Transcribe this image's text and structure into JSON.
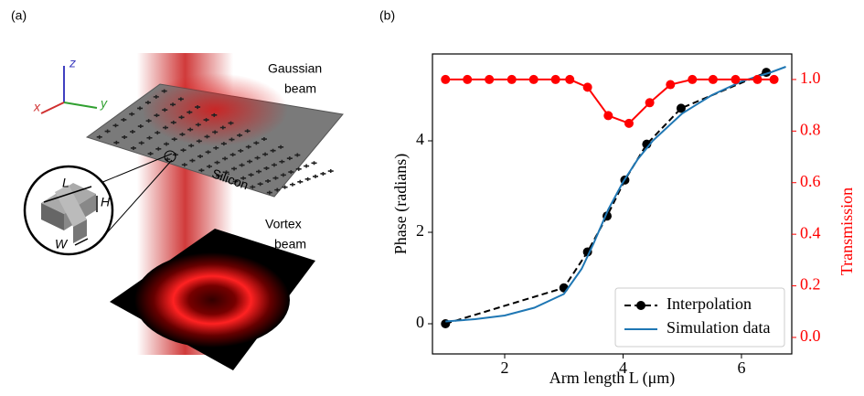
{
  "panel_a": {
    "label": "(a)",
    "axes": {
      "x": "x",
      "y": "y",
      "z": "z"
    },
    "gaussian": [
      "Gaussian",
      "beam"
    ],
    "silicon": "Silicon",
    "vortex": [
      "Vortex",
      "beam"
    ],
    "dims": {
      "L": "L",
      "H": "H",
      "W": "W"
    }
  },
  "chart_data": {
    "type": "line",
    "panel_label": "(b)",
    "xlabel": "Arm length L (μm)",
    "ylabel": "Phase (radians)",
    "y2label": "Transmission",
    "xlim": [
      0.78,
      6.85
    ],
    "xticks": [
      2,
      4,
      6
    ],
    "ylim": [
      -0.66,
      5.9
    ],
    "yticks": [
      0,
      2,
      4
    ],
    "y2lim": [
      -0.064,
      1.099
    ],
    "y2ticks": [
      {
        "value": 0,
        "label": "0.0"
      },
      0.2,
      0.4,
      0.6,
      0.8,
      {
        "value": 1,
        "label": "1.0"
      }
    ],
    "legend": "lower right",
    "series": [
      {
        "name": "Interpolation",
        "color": "#000000",
        "style": "dashed-markers",
        "x": [
          1.0,
          3.0,
          3.4,
          3.73,
          4.03,
          4.4,
          4.98,
          6.42
        ],
        "values": [
          0,
          0.785,
          1.571,
          2.356,
          3.142,
          3.927,
          4.712,
          5.498
        ]
      },
      {
        "name": "Simulation data",
        "color": "#1f77b4",
        "style": "line",
        "x": [
          1.0,
          1.5,
          2.0,
          2.5,
          3.0,
          3.3,
          3.5,
          3.75,
          4.0,
          4.25,
          4.5,
          5.0,
          5.5,
          6.0,
          6.5,
          6.75
        ],
        "values": [
          0.05,
          0.1,
          0.18,
          0.35,
          0.65,
          1.2,
          1.75,
          2.5,
          3.1,
          3.6,
          4.0,
          4.6,
          5.0,
          5.3,
          5.5,
          5.62
        ]
      },
      {
        "color": "#ff0000",
        "style": "markers-line",
        "axis": "y2",
        "x": [
          1.0,
          1.37,
          1.74,
          2.12,
          2.49,
          2.86,
          3.1,
          3.4,
          3.75,
          4.1,
          4.45,
          4.8,
          5.17,
          5.52,
          5.9,
          6.27,
          6.55
        ],
        "values": [
          1.0,
          1.0,
          1.0,
          1.0,
          1.0,
          1.0,
          1.0,
          0.97,
          0.86,
          0.83,
          0.91,
          0.98,
          1.0,
          1.0,
          1.0,
          1.0,
          1.0
        ]
      }
    ]
  }
}
